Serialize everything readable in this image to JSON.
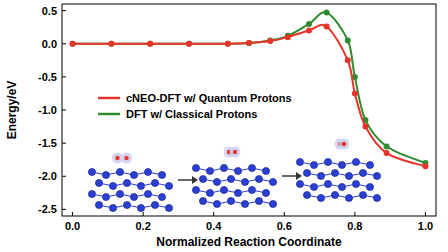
{
  "chart_data": {
    "type": "line",
    "x_label": "Normalized Reaction Coordinate",
    "y_label": "Energy/eV",
    "x": [
      0,
      0.11,
      0.22,
      0.33,
      0.44,
      0.5,
      0.56,
      0.61,
      0.67,
      0.72,
      0.78,
      0.8,
      0.83,
      0.89,
      1.0
    ],
    "series": [
      {
        "name": "cNEO-DFT w/ Quantum Protons",
        "color": "#e8332a",
        "marker": "circle",
        "values": [
          0,
          0,
          0,
          0,
          0,
          0.01,
          0.04,
          0.1,
          0.2,
          0.26,
          -0.25,
          -0.75,
          -1.25,
          -1.65,
          -1.85
        ]
      },
      {
        "name": "DFT w/ Classical Protons",
        "color": "#2e8b2e",
        "marker": "circle",
        "values": [
          0,
          0,
          0,
          0,
          0,
          0.01,
          0.05,
          0.12,
          0.3,
          0.47,
          0.05,
          -0.5,
          -1.15,
          -1.55,
          -1.8
        ]
      }
    ],
    "xlim": [
      -0.03,
      1.03
    ],
    "ylim": [
      -2.6,
      0.6
    ],
    "xticks": [
      {
        "value": 0,
        "label": "0.0"
      },
      0.2,
      0.4,
      0.6,
      0.8,
      {
        "value": 1,
        "label": "1.0"
      }
    ],
    "yticks": [
      -2.5,
      {
        "value": -2,
        "label": "-2.0"
      },
      -1.5,
      {
        "value": -1,
        "label": "-1.0"
      },
      -0.5,
      {
        "value": 0,
        "label": "0.0"
      },
      0.5
    ],
    "legend": "center left",
    "grid": false
  }
}
